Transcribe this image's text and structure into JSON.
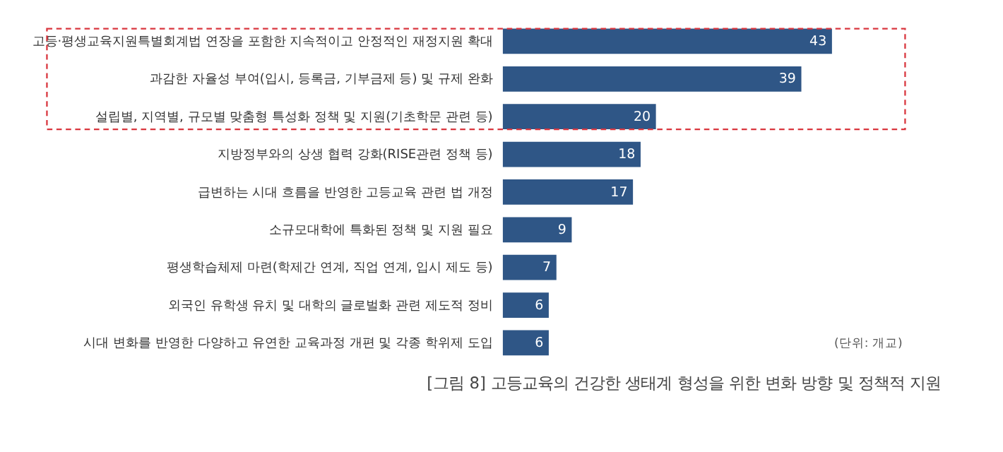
{
  "chart_data": {
    "type": "bar",
    "orientation": "horizontal",
    "title": "[그림 8] 고등교육의 건강한 생태계 형성을 위한 변화 방향 및 정책적 지원",
    "categories": [
      "고등·평생교육지원특별회계법 연장을 포함한 지속적이고 안정적인 재정지원 확대",
      "과감한 자율성 부여(입시, 등록금, 기부금제 등) 및 규제 완화",
      "설립별, 지역별, 규모별 맞춤형 특성화 정책 및 지원(기초학문 관련 등)",
      "지방정부와의 상생 협력 강화(RISE관련 정책 등)",
      "급변하는 시대 흐름을 반영한 고등교육 관련 법 개정",
      "소규모대학에 특화된  정책 및 지원 필요",
      "평생학습체제 마련(학제간 연계, 직업 연계, 입시 제도 등)",
      "외국인 유학생 유치 및 대학의 글로벌화 관련 제도적 정비",
      "시대 변화를 반영한 다양하고 유연한 교육과정 개편 및 각종 학위제  도입"
    ],
    "values": [
      43,
      39,
      20,
      18,
      17,
      9,
      7,
      6,
      6
    ],
    "color": "#2f5686",
    "data_labels": true,
    "annotations": [
      "(단위: 개교)"
    ]
  }
}
